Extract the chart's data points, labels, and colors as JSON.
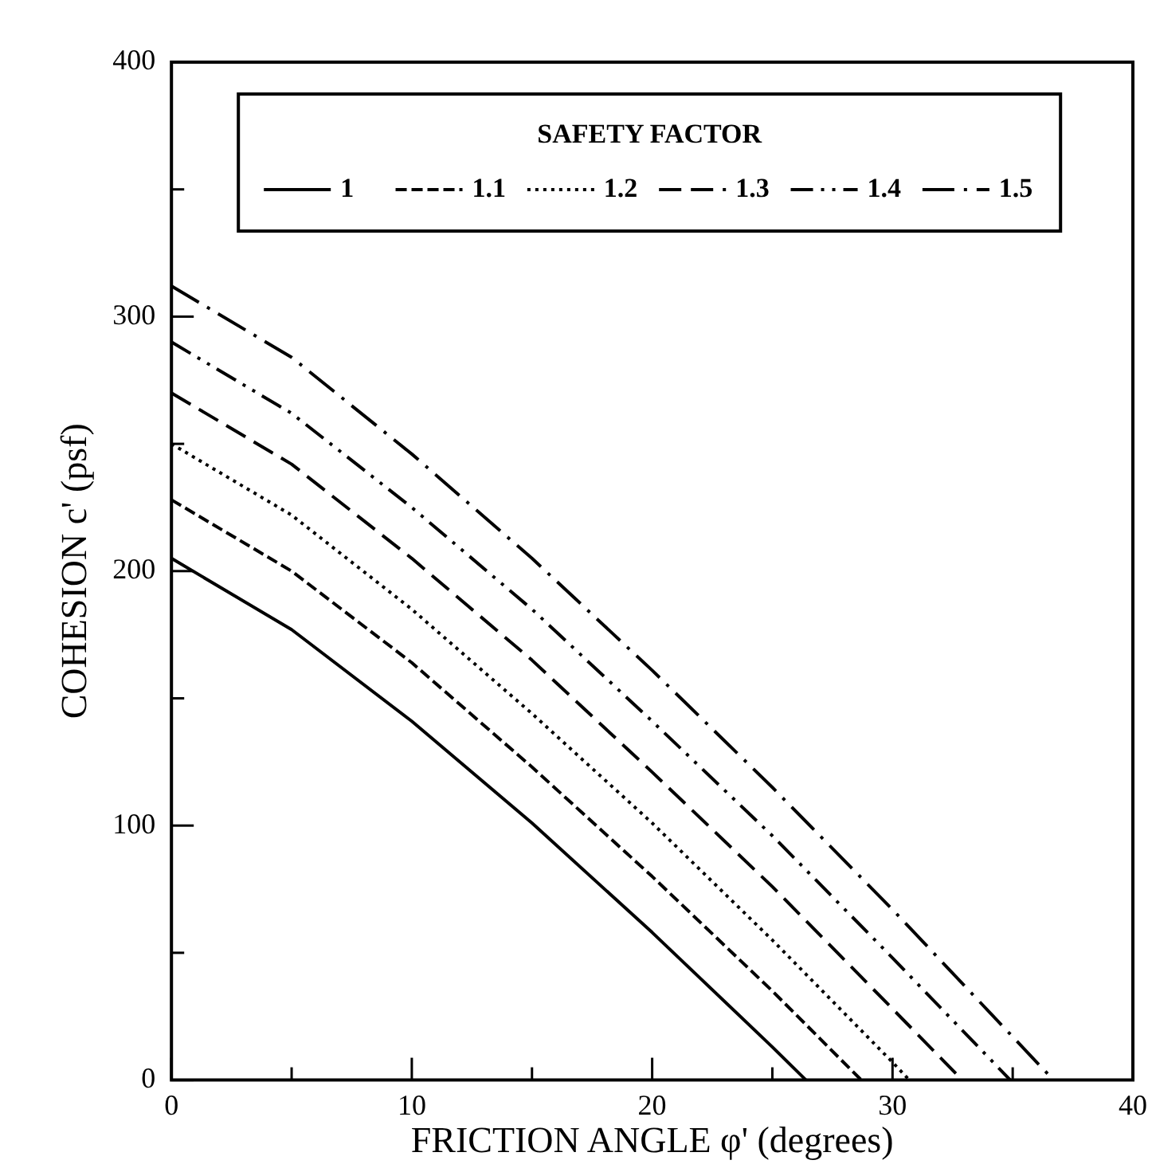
{
  "chart_data": {
    "type": "line",
    "xlabel": "FRICTION ANGLE φ' (degrees)",
    "ylabel": "COHESION c' (psf)",
    "legend_title": "SAFETY FACTOR",
    "legend": "top",
    "grid": false,
    "marker": "none",
    "xlim": [
      0,
      40
    ],
    "ylim": [
      0,
      400
    ],
    "xticks": [
      0,
      {
        "value": 5,
        "label": null
      },
      10,
      {
        "value": 15,
        "label": null
      },
      20,
      {
        "value": 25,
        "label": null
      },
      30,
      {
        "value": 35,
        "label": null
      },
      40
    ],
    "yticks": [
      0,
      {
        "value": 50,
        "label": null
      },
      100,
      {
        "value": 150,
        "label": null
      },
      200,
      {
        "value": 250,
        "label": null
      },
      300,
      {
        "value": 350,
        "label": null
      },
      400
    ],
    "series": [
      {
        "name": "1",
        "color": "#000000",
        "line_style": "solid",
        "x": [
          0,
          5,
          10,
          15,
          20,
          25,
          26.4
        ],
        "values": [
          205,
          177,
          141,
          101,
          58,
          13,
          0
        ]
      },
      {
        "name": "1.1",
        "color": "#000000",
        "line_style": "dashed",
        "x": [
          0,
          5,
          10,
          15,
          20,
          25,
          28.7
        ],
        "values": [
          228,
          200,
          164,
          123,
          80,
          35,
          0
        ]
      },
      {
        "name": "1.2",
        "color": "#000000",
        "line_style": "dotted",
        "x": [
          0,
          5,
          10,
          15,
          20,
          25,
          30,
          30.7
        ],
        "values": [
          250,
          222,
          185,
          144,
          101,
          55,
          7,
          0
        ]
      },
      {
        "name": "1.3",
        "color": "#000000",
        "line_style": "longdash",
        "x": [
          0,
          5,
          10,
          15,
          20,
          25,
          30,
          32.9
        ],
        "values": [
          270,
          242,
          205,
          165,
          121,
          76,
          28,
          0
        ]
      },
      {
        "name": "1.4",
        "color": "#000000",
        "line_style": "dashdotdot",
        "x": [
          0,
          5,
          10,
          15,
          20,
          25,
          30,
          34.9
        ],
        "values": [
          290,
          262,
          225,
          185,
          141,
          96,
          48,
          0
        ]
      },
      {
        "name": "1.5",
        "color": "#000000",
        "line_style": "dashdot",
        "x": [
          0,
          5,
          10,
          15,
          20,
          25,
          30,
          35,
          36.7
        ],
        "values": [
          312,
          284,
          246,
          205,
          161,
          115,
          67,
          17,
          0
        ]
      }
    ]
  }
}
